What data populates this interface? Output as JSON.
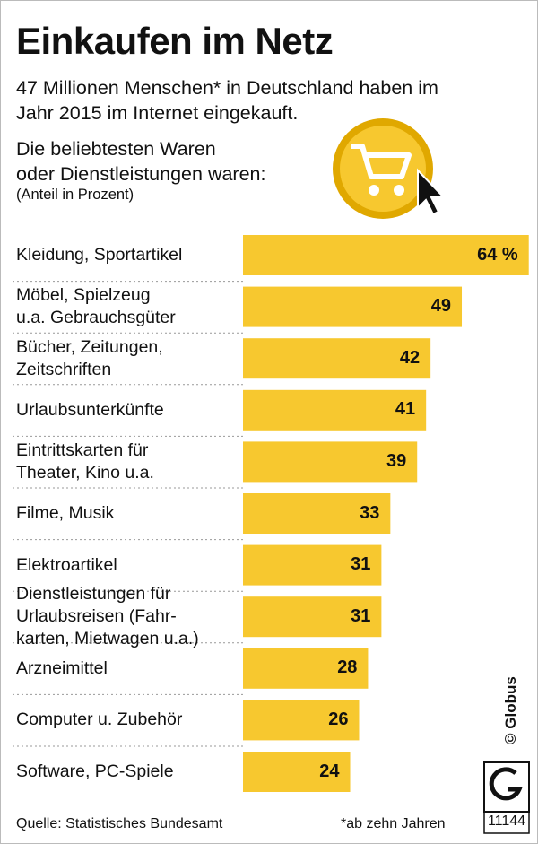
{
  "chart_data": {
    "type": "bar",
    "orientation": "horizontal",
    "title": "Einkaufen im Netz",
    "subtitle": "47 Millionen Menschen* in Deutschland haben im\nJahr 2015 im Internet eingekauft.",
    "intro": "Die beliebtesten Waren\noder Dienstleistungen waren:",
    "unit": "(Anteil in Prozent)",
    "categories": [
      "Kleidung, Sportartikel",
      "Möbel, Spielzeug\nu.a. Gebrauchsgüter",
      "Bücher, Zeitungen,\nZeitschriften",
      "Urlaubsunterkünfte",
      "Eintrittskarten für\nTheater, Kino u.a.",
      "Filme, Musik",
      "Elektroartikel",
      "Dienstleistungen für\nUrlaubsreisen (Fahr-\nkarten, Mietwagen u.a.)",
      "Arzneimittel",
      "Computer u. Zubehör",
      "Software, PC-Spiele"
    ],
    "values": [
      64,
      49,
      42,
      41,
      39,
      33,
      31,
      31,
      28,
      26,
      24
    ],
    "value_labels": [
      "64 %",
      "49",
      "42",
      "41",
      "39",
      "33",
      "31",
      "31",
      "28",
      "26",
      "24"
    ],
    "color": "#f7c82f",
    "source": "Quelle: Statistisches Bundesamt",
    "footnote": "*ab zehn Jahren",
    "credit": "© Globus",
    "code": "11144"
  }
}
